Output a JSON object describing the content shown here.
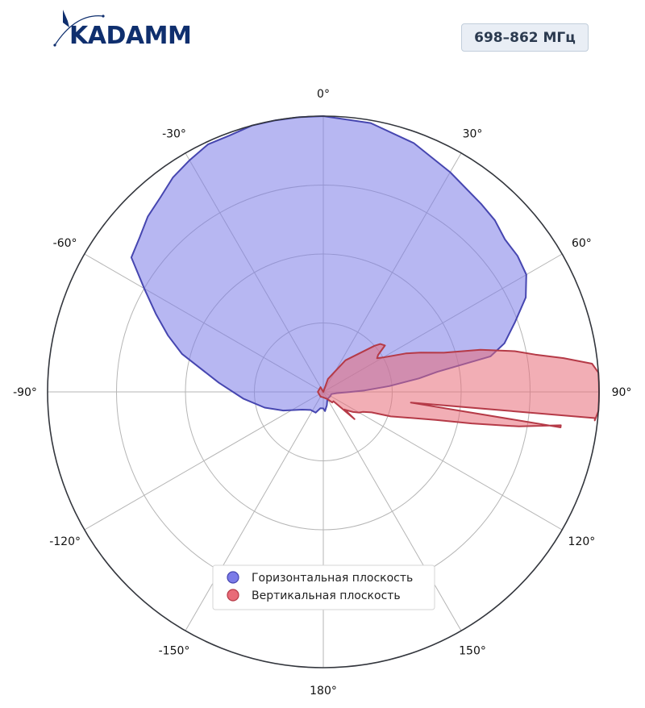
{
  "brand": {
    "logo_text": "KADAMM"
  },
  "badge": {
    "label": "698–862 МГц"
  },
  "chart_data": {
    "type": "polar-area",
    "title": "",
    "theta_ticks": [
      {
        "angle": 0,
        "label": "0°"
      },
      {
        "angle": 30,
        "label": "30°"
      },
      {
        "angle": 60,
        "label": "60°"
      },
      {
        "angle": 90,
        "label": "90°"
      },
      {
        "angle": 120,
        "label": "120°"
      },
      {
        "angle": 150,
        "label": "150°"
      },
      {
        "angle": 180,
        "label": "180°"
      },
      {
        "angle": -150,
        "label": "-150°"
      },
      {
        "angle": -120,
        "label": "-120°"
      },
      {
        "angle": -90,
        "label": "-90°"
      },
      {
        "angle": -60,
        "label": "-60°"
      },
      {
        "angle": -30,
        "label": "-30°"
      }
    ],
    "r_range": [
      0,
      1
    ],
    "r_gridlines": [
      0.25,
      0.5,
      0.75
    ],
    "grid": true,
    "legend_position": "bottom-center",
    "series": [
      {
        "name": "Горизонтальная плоскость",
        "color": "#7b7be8",
        "edge_color": "#4646b0",
        "points": [
          [
            0,
            1.0
          ],
          [
            10,
            0.99
          ],
          [
            20,
            0.96
          ],
          [
            30,
            0.92
          ],
          [
            40,
            0.89
          ],
          [
            45,
            0.88
          ],
          [
            50,
            0.86
          ],
          [
            55,
            0.86
          ],
          [
            60,
            0.85
          ],
          [
            65,
            0.81
          ],
          [
            70,
            0.74
          ],
          [
            75,
            0.68
          ],
          [
            78,
            0.62
          ],
          [
            80,
            0.42
          ],
          [
            82,
            0.35
          ],
          [
            85,
            0.24
          ],
          [
            88,
            0.15
          ],
          [
            90,
            0.1
          ],
          [
            95,
            0.05
          ],
          [
            105,
            0.03
          ],
          [
            120,
            0.03
          ],
          [
            150,
            0.03
          ],
          [
            165,
            0.05
          ],
          [
            175,
            0.07
          ],
          [
            180,
            0.06
          ],
          [
            -170,
            0.06
          ],
          [
            -160,
            0.08
          ],
          [
            -145,
            0.08
          ],
          [
            -130,
            0.1
          ],
          [
            -115,
            0.16
          ],
          [
            -105,
            0.22
          ],
          [
            -95,
            0.29
          ],
          [
            -85,
            0.38
          ],
          [
            -75,
            0.53
          ],
          [
            -70,
            0.6
          ],
          [
            -65,
            0.67
          ],
          [
            -60,
            0.75
          ],
          [
            -55,
            0.85
          ],
          [
            -50,
            0.87
          ],
          [
            -45,
            0.9
          ],
          [
            -40,
            0.92
          ],
          [
            -35,
            0.95
          ],
          [
            -30,
            0.97
          ],
          [
            -25,
            0.99
          ],
          [
            -20,
            0.99
          ],
          [
            -15,
            1.0
          ],
          [
            -10,
            1.0
          ],
          [
            -5,
            1.0
          ]
        ]
      },
      {
        "name": "Вертикальная плоскость",
        "color": "#e86b78",
        "edge_color": "#b53a47",
        "points": [
          [
            0,
            0.0
          ],
          [
            20,
            0.05
          ],
          [
            35,
            0.14
          ],
          [
            45,
            0.21
          ],
          [
            48,
            0.25
          ],
          [
            50,
            0.27
          ],
          [
            53,
            0.28
          ],
          [
            56,
            0.24
          ],
          [
            58,
            0.23
          ],
          [
            60,
            0.25
          ],
          [
            65,
            0.33
          ],
          [
            68,
            0.38
          ],
          [
            72,
            0.46
          ],
          [
            75,
            0.59
          ],
          [
            78,
            0.71
          ],
          [
            80,
            0.78
          ],
          [
            82,
            0.88
          ],
          [
            84,
            0.98
          ],
          [
            86,
            1.0
          ],
          [
            88,
            1.0
          ],
          [
            90,
            1.0
          ],
          [
            92,
            1.0
          ],
          [
            94,
            1.0
          ],
          [
            96,
            0.99
          ],
          [
            98,
            0.87
          ],
          [
            100,
            0.72
          ],
          [
            102,
            0.55
          ],
          [
            104,
            0.42
          ],
          [
            107,
            0.32
          ],
          [
            110,
            0.26
          ],
          [
            113,
            0.19
          ],
          [
            117,
            0.16
          ],
          [
            120,
            0.15
          ],
          [
            124,
            0.13
          ],
          [
            130,
            0.1
          ],
          [
            140,
            0.05
          ],
          [
            150,
            0.03
          ],
          [
            180,
            0.02
          ],
          [
            -150,
            0.02
          ],
          [
            -90,
            0.02
          ],
          [
            -30,
            0.02
          ]
        ],
        "spikes": [
          {
            "angle": 97,
            "value": 0.32
          },
          {
            "angle": 131,
            "value": 0.15
          }
        ]
      }
    ]
  }
}
